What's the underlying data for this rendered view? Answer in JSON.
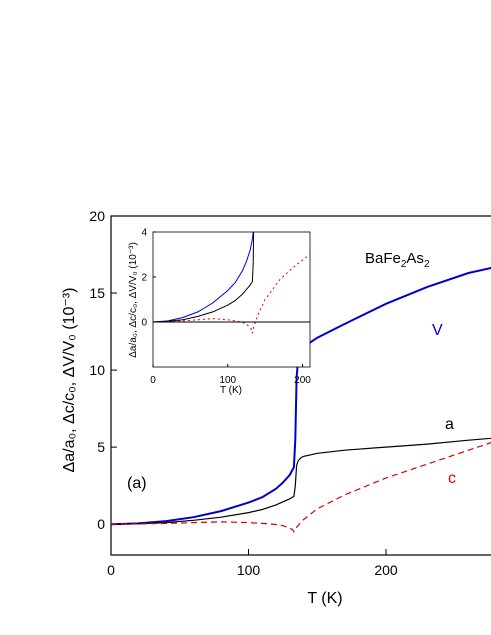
{
  "chart_data": [
    {
      "type": "line",
      "panel_label": "(a)",
      "compound": {
        "base": "BaFe",
        "sub1": "2",
        "mid": "As",
        "sub2": "2"
      },
      "xlabel": "T (K)",
      "ylabel": "Δa/a₀, Δc/c₀, ΔV/V₀ (10⁻³)",
      "xlim": [
        0,
        280
      ],
      "ylim": [
        -2,
        20
      ],
      "xticks": [
        "0",
        "100",
        "200"
      ],
      "yticks": [
        "0",
        "5",
        "10",
        "15",
        "20"
      ],
      "series": [
        {
          "name": "V",
          "color": "#0000cc",
          "style": "solid",
          "x": [
            0,
            20,
            40,
            60,
            80,
            100,
            110,
            120,
            125,
            130,
            133,
            134,
            135,
            136,
            138,
            140,
            150,
            170,
            200,
            230,
            260,
            280
          ],
          "y": [
            0,
            0.05,
            0.2,
            0.45,
            0.85,
            1.4,
            1.75,
            2.3,
            2.7,
            3.2,
            3.7,
            5.5,
            9.5,
            10.6,
            11.2,
            11.5,
            12.1,
            13,
            14.3,
            15.4,
            16.3,
            16.7
          ]
        },
        {
          "name": "a",
          "color": "#000000",
          "style": "solid",
          "x": [
            0,
            20,
            40,
            60,
            80,
            100,
            110,
            120,
            125,
            130,
            133,
            134,
            135,
            136,
            138,
            140,
            150,
            170,
            200,
            230,
            260,
            280
          ],
          "y": [
            0,
            0.03,
            0.1,
            0.25,
            0.45,
            0.75,
            0.95,
            1.25,
            1.45,
            1.65,
            1.8,
            2.5,
            3.8,
            4.1,
            4.3,
            4.4,
            4.6,
            4.8,
            5.0,
            5.2,
            5.45,
            5.6
          ]
        },
        {
          "name": "c",
          "color": "#dd0000",
          "style": "dashed",
          "x": [
            0,
            20,
            40,
            60,
            80,
            100,
            110,
            120,
            125,
            130,
            132,
            133,
            134,
            136,
            140,
            150,
            170,
            200,
            230,
            260,
            280
          ],
          "y": [
            0,
            0.02,
            0.05,
            0.1,
            0.15,
            0.1,
            0.05,
            -0.02,
            -0.1,
            -0.25,
            -0.35,
            -0.5,
            -0.3,
            -0.1,
            0.3,
            1.0,
            1.9,
            3.0,
            3.9,
            4.8,
            5.4
          ]
        }
      ]
    },
    {
      "type": "line",
      "inset": true,
      "xlabel": "T (K)",
      "ylabel": "Δa/a₀, Δc/c₀, ΔV/V₀ (10⁻³)",
      "xlim": [
        0,
        210
      ],
      "ylim": [
        -2,
        4
      ],
      "xticks": [
        "0",
        "100",
        "200"
      ],
      "yticks": [
        "0",
        "2",
        "4"
      ],
      "series": [
        {
          "color": "#0000cc",
          "style": "solid",
          "x": [
            0,
            20,
            40,
            60,
            80,
            100,
            110,
            120,
            125,
            130,
            133,
            134
          ],
          "y": [
            0,
            0.05,
            0.2,
            0.45,
            0.85,
            1.4,
            1.75,
            2.3,
            2.7,
            3.2,
            3.7,
            4
          ]
        },
        {
          "color": "#000000",
          "style": "solid",
          "x": [
            0,
            20,
            40,
            60,
            80,
            100,
            110,
            120,
            125,
            130,
            133,
            134,
            134.5
          ],
          "y": [
            0,
            0.03,
            0.1,
            0.25,
            0.45,
            0.75,
            0.95,
            1.25,
            1.45,
            1.65,
            1.8,
            2.6,
            4
          ]
        },
        {
          "color": "#dd0000",
          "style": "dotted",
          "x": [
            0,
            20,
            40,
            60,
            80,
            100,
            110,
            120,
            125,
            130,
            132,
            133,
            134,
            136,
            140,
            150,
            170,
            190,
            210
          ],
          "y": [
            0,
            0.02,
            0.05,
            0.1,
            0.15,
            0.1,
            0.05,
            -0.02,
            -0.1,
            -0.25,
            -0.35,
            -0.5,
            -0.3,
            -0.1,
            0.3,
            1.0,
            1.9,
            2.5,
            3.0
          ]
        },
        {
          "color": "#000000",
          "style": "solid",
          "x": [
            0,
            210
          ],
          "y": [
            0,
            0
          ]
        }
      ]
    }
  ]
}
